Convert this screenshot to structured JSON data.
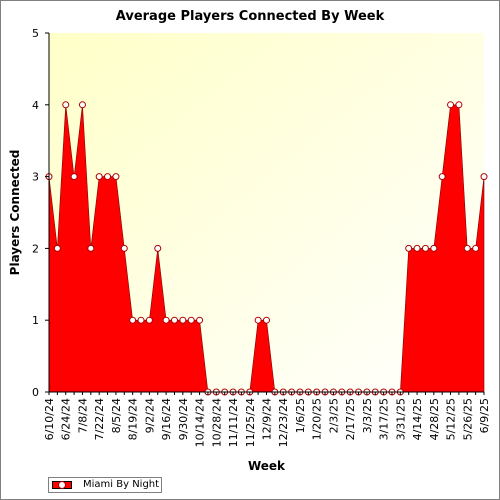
{
  "chart_data": {
    "type": "area",
    "title": "Average Players Connected By Week",
    "xlabel": "Week",
    "ylabel": "Players Connected",
    "ylim": [
      0,
      5
    ],
    "yticks": [
      0,
      1,
      2,
      3,
      4,
      5
    ],
    "grid": false,
    "legend_position": "bottom-left",
    "tick_labels": [
      "6/10/24",
      "6/24/24",
      "7/8/24",
      "7/22/24",
      "8/5/24",
      "8/19/24",
      "9/2/24",
      "9/16/24",
      "9/30/24",
      "10/14/24",
      "10/28/24",
      "11/11/24",
      "11/25/24",
      "12/9/24",
      "12/23/24",
      "1/6/25",
      "1/20/25",
      "2/3/25",
      "2/17/25",
      "3/3/25",
      "3/17/25",
      "3/31/25",
      "4/14/25",
      "4/28/25",
      "5/12/25",
      "5/26/25",
      "6/9/25"
    ],
    "categories": [
      "6/10/24",
      "6/17/24",
      "6/24/24",
      "7/1/24",
      "7/8/24",
      "7/15/24",
      "7/22/24",
      "7/29/24",
      "8/5/24",
      "8/12/24",
      "8/19/24",
      "8/26/24",
      "9/2/24",
      "9/9/24",
      "9/16/24",
      "9/23/24",
      "9/30/24",
      "10/7/24",
      "10/14/24",
      "10/21/24",
      "10/28/24",
      "11/4/24",
      "11/11/24",
      "11/18/24",
      "11/25/24",
      "12/2/24",
      "12/9/24",
      "12/16/24",
      "12/23/24",
      "12/30/24",
      "1/6/25",
      "1/13/25",
      "1/20/25",
      "1/27/25",
      "2/3/25",
      "2/10/25",
      "2/17/25",
      "2/24/25",
      "3/3/25",
      "3/10/25",
      "3/17/25",
      "3/24/25",
      "3/31/25",
      "4/7/25",
      "4/14/25",
      "4/21/25",
      "4/28/25",
      "5/5/25",
      "5/12/25",
      "5/19/25",
      "5/26/25",
      "6/2/25",
      "6/9/25"
    ],
    "series": [
      {
        "name": "Miami By Night",
        "color": "#ff0000",
        "values": [
          3,
          2,
          4,
          3,
          4,
          2,
          3,
          3,
          3,
          2,
          1,
          1,
          1,
          2,
          1,
          1,
          1,
          1,
          1,
          0,
          0,
          0,
          0,
          0,
          0,
          1,
          1,
          0,
          0,
          0,
          0,
          0,
          0,
          0,
          0,
          0,
          0,
          0,
          0,
          0,
          0,
          0,
          0,
          2,
          2,
          2,
          2,
          3,
          4,
          4,
          2,
          2,
          3
        ]
      }
    ]
  },
  "colors": {
    "plot_background_left": "#ffffc8",
    "plot_background_right": "#ffffff",
    "area_fill": "#ff0000",
    "marker_fill": "#ffffff",
    "marker_stroke": "#b00000"
  }
}
